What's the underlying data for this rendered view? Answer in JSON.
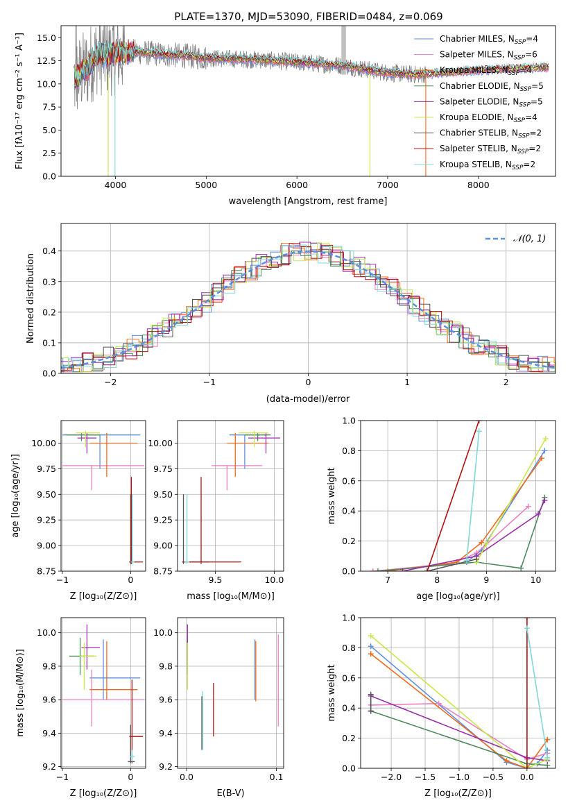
{
  "colors": {
    "chabrier_miles": "#5b8fe0",
    "salpeter_miles": "#e87fc0",
    "kroupa_miles": "#f06a1a",
    "chabrier_elodie": "#4e8a5a",
    "salpeter_elodie": "#9a2eaa",
    "kroupa_elodie": "#c8e84a",
    "chabrier_stelib": "#555555",
    "salpeter_stelib": "#b01010",
    "kroupa_stelib": "#7ed8d8",
    "data": "#808080",
    "gauss": "#5b8fe0"
  },
  "chart_data": [
    {
      "type": "line",
      "id": "spectrum",
      "title": "PLATE=1370, MJD=53090, FIBERID=0484, z=0.069",
      "xlabel": "wavelength [Angstrom, rest frame]",
      "ylabel": "Flux [fλ10⁻¹⁷ erg cm⁻² s⁻¹ A⁻¹]",
      "xlim": [
        3400,
        8850
      ],
      "ylim": [
        0,
        16.3
      ],
      "xticks": [
        4000,
        5000,
        6000,
        7000,
        8000
      ],
      "yticks": [
        0.0,
        2.5,
        5.0,
        7.5,
        10.0,
        12.5,
        15.0
      ],
      "legend_position": "top-right",
      "legend": [
        "Chabrier MILES, N_SSP=4",
        "Salpeter MILES, N_SSP=6",
        "Kroupa MILES, N_SSP=4",
        "Chabrier ELODIE, N_SSP=5",
        "Salpeter ELODIE, N_SSP=5",
        "Kroupa ELODIE, N_SSP=4",
        "Chabrier STELIB, N_SSP=2",
        "Salpeter STELIB, N_SSP=2",
        "Kroupa STELIB, N_SSP=2"
      ],
      "model_continuum": {
        "x": [
          3550,
          3700,
          3800,
          3900,
          4000,
          4200,
          4500,
          4800,
          5000,
          5300,
          5600,
          5900,
          6200,
          6500,
          6800,
          7000,
          7300,
          7600,
          7900,
          8200,
          8500,
          8800
        ],
        "y": [
          10.5,
          11.8,
          13.2,
          13.0,
          13.2,
          13.5,
          13.2,
          13.0,
          12.8,
          12.7,
          12.6,
          12.4,
          12.2,
          12.0,
          11.5,
          11.2,
          11.0,
          11.2,
          11.4,
          11.6,
          11.7,
          11.8
        ]
      },
      "dips": [
        {
          "series": "kroupa_elodie",
          "x": 3920,
          "to": 0
        },
        {
          "series": "kroupa_stelib",
          "x": 3995,
          "to": 0
        },
        {
          "series": "kroupa_elodie",
          "x": 6805,
          "to": 0
        },
        {
          "series": "kroupa_miles",
          "x": 7420,
          "to": 0
        }
      ]
    },
    {
      "type": "step",
      "id": "residuals",
      "xlabel": "(data-model)/error",
      "ylabel": "Normed distribution",
      "xlim": [
        -2.5,
        2.5
      ],
      "ylim": [
        0,
        0.49
      ],
      "xticks": [
        -2,
        -1,
        0,
        1,
        2
      ],
      "yticks": [
        0.0,
        0.1,
        0.2,
        0.3,
        0.4
      ],
      "legend": [
        "𝒩(0, 1)"
      ],
      "legend_position": "top-right",
      "grid": true
    },
    {
      "type": "errorbar",
      "id": "age_vs_Z",
      "xlabel": "Z [log₁₀(Z/Z⊙)]",
      "ylabel": "age  [log₁₀(age/yr)]",
      "xlim": [
        -1.02,
        0.22
      ],
      "ylim": [
        8.75,
        10.22
      ],
      "xticks": [
        -1,
        0
      ],
      "yticks": [
        8.75,
        9.0,
        9.25,
        9.5,
        9.75,
        10.0
      ],
      "grid": true,
      "points": [
        {
          "s": "chabrier_miles",
          "x": -0.45,
          "y": 10.08,
          "xl": -1.0,
          "xh": 0.14,
          "yl": 9.75,
          "yh": 10.08
        },
        {
          "s": "salpeter_miles",
          "x": -0.57,
          "y": 9.78,
          "xl": -1.0,
          "xh": 0.2,
          "yl": 9.54,
          "yh": 9.78
        },
        {
          "s": "kroupa_miles",
          "x": -0.35,
          "y": 10.0,
          "xl": -0.6,
          "xh": 0.1,
          "yl": 9.67,
          "yh": 10.1
        },
        {
          "s": "chabrier_elodie",
          "x": -0.72,
          "y": 10.08,
          "xl": -0.95,
          "xh": -0.44,
          "yl": 10.02,
          "yh": 10.1
        },
        {
          "s": "salpeter_elodie",
          "x": -0.64,
          "y": 10.05,
          "xl": -0.78,
          "xh": -0.5,
          "yl": 9.9,
          "yh": 10.1
        },
        {
          "s": "kroupa_elodie",
          "x": -0.66,
          "y": 10.1,
          "xl": -0.8,
          "xh": -0.45,
          "yl": 9.96,
          "yh": 10.12
        },
        {
          "s": "chabrier_stelib",
          "x": 0.0,
          "y": 8.84,
          "xl": -0.02,
          "xh": 0.08,
          "yl": 8.82,
          "yh": 9.5
        },
        {
          "s": "salpeter_stelib",
          "x": 0.01,
          "y": 8.84,
          "xl": -0.02,
          "xh": 0.18,
          "yl": 8.82,
          "yh": 9.67
        },
        {
          "s": "kroupa_stelib",
          "x": 0.03,
          "y": 8.84,
          "xl": 0.0,
          "xh": 0.06,
          "yl": 8.82,
          "yh": 9.5
        }
      ]
    },
    {
      "type": "errorbar",
      "id": "age_vs_mass",
      "xlabel": "mass [log₁₀(M/M⊙)]",
      "ylabel": "",
      "xlim": [
        9.18,
        10.08
      ],
      "ylim": [
        8.75,
        10.22
      ],
      "xticks": [
        9.5,
        10.0
      ],
      "yticks": [
        8.75,
        9.0,
        9.25,
        9.5,
        9.75,
        10.0
      ],
      "grid": true,
      "points": [
        {
          "s": "chabrier_miles",
          "x": 9.75,
          "y": 10.08,
          "xl": 9.62,
          "xh": 9.93,
          "yl": 9.75,
          "yh": 10.08
        },
        {
          "s": "salpeter_miles",
          "x": 9.6,
          "y": 9.78,
          "xl": 9.47,
          "xh": 9.9,
          "yl": 9.54,
          "yh": 9.78
        },
        {
          "s": "kroupa_miles",
          "x": 9.67,
          "y": 10.0,
          "xl": 9.6,
          "xh": 9.95,
          "yl": 9.67,
          "yh": 10.1
        },
        {
          "s": "chabrier_elodie",
          "x": 9.86,
          "y": 10.08,
          "xl": 9.75,
          "xh": 9.97,
          "yl": 10.02,
          "yh": 10.1
        },
        {
          "s": "salpeter_elodie",
          "x": 9.93,
          "y": 10.05,
          "xl": 9.78,
          "xh": 10.05,
          "yl": 9.9,
          "yh": 10.1
        },
        {
          "s": "kroupa_elodie",
          "x": 9.83,
          "y": 10.1,
          "xl": 9.7,
          "xh": 9.95,
          "yl": 9.96,
          "yh": 10.12
        },
        {
          "s": "chabrier_stelib",
          "x": 9.23,
          "y": 8.84,
          "xl": 9.22,
          "xh": 9.45,
          "yl": 8.82,
          "yh": 9.5
        },
        {
          "s": "salpeter_stelib",
          "x": 9.38,
          "y": 8.84,
          "xl": 9.22,
          "xh": 9.72,
          "yl": 8.82,
          "yh": 9.67
        },
        {
          "s": "kroupa_stelib",
          "x": 9.26,
          "y": 8.84,
          "xl": 9.24,
          "xh": 9.28,
          "yl": 8.82,
          "yh": 9.5
        }
      ]
    },
    {
      "type": "line",
      "id": "weight_vs_age",
      "xlabel": "age  [log₁₀(age/yr)]",
      "ylabel": "mass weight",
      "xlim": [
        6.45,
        10.4
      ],
      "ylim": [
        0,
        1.0
      ],
      "xticks": [
        7,
        8,
        9,
        10
      ],
      "yticks": [
        0.0,
        0.2,
        0.4,
        0.6,
        0.8,
        1.0
      ],
      "grid": true,
      "series": [
        {
          "s": "chabrier_miles",
          "x": [
            8.6,
            8.9,
            10.18
          ],
          "y": [
            0.06,
            0.14,
            0.8
          ]
        },
        {
          "s": "salpeter_miles",
          "x": [
            6.7,
            8.3,
            8.8,
            9.85
          ],
          "y": [
            0.0,
            0.05,
            0.12,
            0.43
          ]
        },
        {
          "s": "kroupa_miles",
          "x": [
            7.0,
            8.4,
            8.9,
            10.12
          ],
          "y": [
            0.0,
            0.06,
            0.19,
            0.75
          ]
        },
        {
          "s": "chabrier_elodie",
          "x": [
            6.8,
            8.8,
            9.7,
            10.18
          ],
          "y": [
            0.0,
            0.06,
            0.02,
            0.49
          ]
        },
        {
          "s": "salpeter_elodie",
          "x": [
            7.3,
            8.8,
            10.05,
            10.18
          ],
          "y": [
            0.0,
            0.1,
            0.38,
            0.47
          ]
        },
        {
          "s": "kroupa_elodie",
          "x": [
            8.8,
            9.0,
            10.2
          ],
          "y": [
            0.06,
            0.18,
            0.88
          ]
        },
        {
          "s": "chabrier_stelib",
          "x": [
            7.8,
            8.8
          ],
          "y": [
            0.0,
            0.08
          ]
        },
        {
          "s": "salpeter_stelib",
          "x": [
            7.8,
            8.85
          ],
          "y": [
            0.0,
            1.0
          ]
        },
        {
          "s": "kroupa_stelib",
          "x": [
            8.6,
            8.85
          ],
          "y": [
            0.07,
            0.93
          ]
        }
      ]
    },
    {
      "type": "errorbar",
      "id": "mass_vs_Z",
      "xlabel": "Z [log₁₀(Z/Z⊙)]",
      "ylabel": "mass [log₁₀(M/M⊙)]",
      "xlim": [
        -1.02,
        0.22
      ],
      "ylim": [
        9.19,
        10.09
      ],
      "xticks": [
        -1,
        0
      ],
      "yticks": [
        9.2,
        9.4,
        9.6,
        9.8,
        10.0
      ],
      "grid": true,
      "points": [
        {
          "s": "chabrier_miles",
          "x": -0.4,
          "y": 9.73,
          "xl": -0.6,
          "xh": 0.14,
          "yl": 9.6,
          "yh": 9.96
        },
        {
          "s": "salpeter_miles",
          "x": -0.57,
          "y": 9.6,
          "xl": -1.0,
          "xh": 0.2,
          "yl": 9.44,
          "yh": 9.78
        },
        {
          "s": "kroupa_miles",
          "x": -0.35,
          "y": 9.66,
          "xl": -0.6,
          "xh": 0.1,
          "yl": 9.6,
          "yh": 9.95
        },
        {
          "s": "chabrier_elodie",
          "x": -0.74,
          "y": 9.86,
          "xl": -0.9,
          "xh": -0.53,
          "yl": 9.75,
          "yh": 9.97
        },
        {
          "s": "salpeter_elodie",
          "x": -0.64,
          "y": 9.91,
          "xl": -0.72,
          "xh": -0.45,
          "yl": 9.78,
          "yh": 10.05
        },
        {
          "s": "kroupa_elodie",
          "x": -0.68,
          "y": 9.86,
          "xl": -0.75,
          "xh": -0.5,
          "yl": 9.66,
          "yh": 9.94
        },
        {
          "s": "chabrier_stelib",
          "x": 0.0,
          "y": 9.23,
          "xl": -0.04,
          "xh": 0.06,
          "yl": 9.22,
          "yh": 9.45
        },
        {
          "s": "salpeter_stelib",
          "x": 0.02,
          "y": 9.38,
          "xl": -0.02,
          "xh": 0.18,
          "yl": 9.22,
          "yh": 9.72
        },
        {
          "s": "kroupa_stelib",
          "x": 0.02,
          "y": 9.26,
          "xl": -0.01,
          "xh": 0.06,
          "yl": 9.23,
          "yh": 9.3
        }
      ]
    },
    {
      "type": "errorbar",
      "id": "mass_vs_ebv",
      "xlabel": "E(B-V)",
      "ylabel": "",
      "xlim": [
        -0.01,
        0.108
      ],
      "ylim": [
        9.19,
        10.09
      ],
      "xticks": [
        0.0,
        0.1
      ],
      "yticks": [
        9.2,
        9.4,
        9.6,
        9.8,
        10.0
      ],
      "grid": true,
      "points": [
        {
          "s": "chabrier_miles",
          "x": 0.076,
          "y": 9.73,
          "xl": 0.076,
          "xh": 0.076,
          "yl": 9.6,
          "yh": 9.96
        },
        {
          "s": "salpeter_miles",
          "x": 0.102,
          "y": 9.6,
          "xl": 0.102,
          "xh": 0.102,
          "yl": 9.44,
          "yh": 9.99
        },
        {
          "s": "kroupa_miles",
          "x": 0.077,
          "y": 9.66,
          "xl": 0.077,
          "xh": 0.077,
          "yl": 9.59,
          "yh": 9.95
        },
        {
          "s": "chabrier_elodie",
          "x": 0.001,
          "y": 9.86,
          "xl": 0.001,
          "xh": 0.001,
          "yl": 9.75,
          "yh": 9.97
        },
        {
          "s": "salpeter_elodie",
          "x": 0.001,
          "y": 9.91,
          "xl": 0.001,
          "xh": 0.001,
          "yl": 9.78,
          "yh": 10.05
        },
        {
          "s": "kroupa_elodie",
          "x": 0.001,
          "y": 9.86,
          "xl": 0.001,
          "xh": 0.001,
          "yl": 9.66,
          "yh": 9.94
        },
        {
          "s": "chabrier_stelib",
          "x": 0.017,
          "y": 9.4,
          "xl": 0.017,
          "xh": 0.017,
          "yl": 9.3,
          "yh": 9.62
        },
        {
          "s": "salpeter_stelib",
          "x": 0.03,
          "y": 9.5,
          "xl": 0.03,
          "xh": 0.03,
          "yl": 9.38,
          "yh": 9.7
        },
        {
          "s": "kroupa_stelib",
          "x": 0.018,
          "y": 9.45,
          "xl": 0.018,
          "xh": 0.018,
          "yl": 9.3,
          "yh": 9.65
        }
      ]
    },
    {
      "type": "line",
      "id": "weight_vs_Z",
      "xlabel": "Z [log₁₀(Z/Z⊙)]",
      "ylabel": "mass weight",
      "xlim": [
        -2.45,
        0.42
      ],
      "ylim": [
        0,
        1.0
      ],
      "xticks": [
        -2.0,
        -1.5,
        -1.0,
        -0.5,
        0.0
      ],
      "yticks": [
        0.0,
        0.2,
        0.4,
        0.6,
        0.8,
        1.0
      ],
      "grid": true,
      "series": [
        {
          "s": "chabrier_miles",
          "x": [
            -2.3,
            -0.3,
            0.0,
            0.15,
            0.3
          ],
          "y": [
            0.81,
            0.04,
            0.0,
            0.03,
            0.12
          ]
        },
        {
          "s": "salpeter_miles",
          "x": [
            -2.3,
            -1.3,
            0.0,
            0.3
          ],
          "y": [
            0.42,
            0.43,
            0.06,
            0.1
          ]
        },
        {
          "s": "kroupa_miles",
          "x": [
            -2.3,
            -0.3,
            0.0,
            0.3
          ],
          "y": [
            0.76,
            0.05,
            0.0,
            0.19
          ]
        },
        {
          "s": "chabrier_elodie",
          "x": [
            -2.3,
            0.0,
            0.3
          ],
          "y": [
            0.38,
            0.03,
            0.02
          ]
        },
        {
          "s": "salpeter_elodie",
          "x": [
            -2.3,
            -2.3,
            0.0,
            0.3
          ],
          "y": [
            0.38,
            0.48,
            0.07,
            0.05
          ]
        },
        {
          "s": "kroupa_elodie",
          "x": [
            -2.3,
            0.0,
            0.3
          ],
          "y": [
            0.88,
            0.0,
            0.06
          ]
        },
        {
          "s": "chabrier_stelib",
          "x": [
            -2.3,
            -2.3
          ],
          "y": [
            0.38,
            0.49
          ]
        },
        {
          "s": "salpeter_stelib",
          "x": [
            0.0,
            0.0
          ],
          "y": [
            0.0,
            1.0
          ]
        },
        {
          "s": "kroupa_stelib",
          "x": [
            0.0,
            0.3
          ],
          "y": [
            0.93,
            0.07
          ]
        }
      ]
    }
  ]
}
